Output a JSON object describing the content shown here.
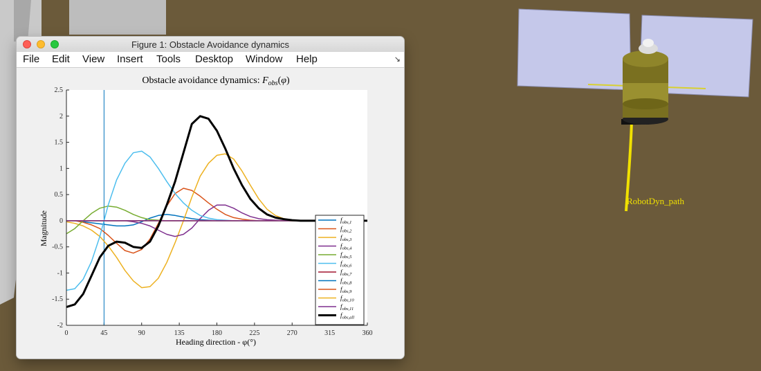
{
  "window": {
    "title": "Figure 1: Obstacle Avoidance dynamics"
  },
  "menu": [
    "File",
    "Edit",
    "View",
    "Insert",
    "Tools",
    "Desktop",
    "Window",
    "Help"
  ],
  "scene": {
    "path_label": "RobotDyn_path",
    "path_color": "#f0e000",
    "background_color": "#6b5a3a"
  },
  "chart_data": {
    "type": "line",
    "title": "Obstacle avoidance dynamics: F_obs(φ)",
    "xlabel": "Heading direction - φ(°)",
    "ylabel": "Magnitude",
    "xlim": [
      0,
      360
    ],
    "ylim": [
      -2,
      2.5
    ],
    "xticks": [
      0,
      45,
      90,
      135,
      180,
      225,
      270,
      315,
      360
    ],
    "yticks": [
      -2,
      -1.5,
      -1,
      -0.5,
      0,
      0.5,
      1,
      1.5,
      2,
      2.5
    ],
    "vline_x": 45,
    "grid": false,
    "legend_position": "bottom-right",
    "x": [
      0,
      10,
      20,
      30,
      40,
      50,
      60,
      70,
      80,
      90,
      100,
      110,
      120,
      130,
      140,
      150,
      160,
      170,
      180,
      190,
      200,
      210,
      220,
      230,
      240,
      250,
      260,
      270,
      280,
      290,
      300,
      310,
      320,
      330,
      340,
      350,
      360
    ],
    "series": [
      {
        "name": "f_obs,1",
        "color": "#0072bd",
        "width": 1.5,
        "values": [
          0,
          0,
          -0.02,
          -0.04,
          -0.06,
          -0.08,
          -0.1,
          -0.1,
          -0.08,
          -0.02,
          0.05,
          0.1,
          0.12,
          0.1,
          0.07,
          0.04,
          0.02,
          0.01,
          0,
          0,
          0,
          0,
          0,
          0,
          0,
          0,
          0,
          0,
          0,
          0,
          0,
          0,
          0,
          0,
          0,
          0,
          0
        ]
      },
      {
        "name": "f_obs,2",
        "color": "#d95319",
        "width": 1.5,
        "values": [
          0,
          0,
          -0.03,
          -0.08,
          -0.15,
          -0.28,
          -0.43,
          -0.57,
          -0.62,
          -0.55,
          -0.35,
          -0.05,
          0.28,
          0.52,
          0.62,
          0.58,
          0.47,
          0.34,
          0.22,
          0.12,
          0.06,
          0.03,
          0.01,
          0,
          0,
          0,
          0,
          0,
          0,
          0,
          0,
          0,
          0,
          0,
          0,
          0,
          0
        ]
      },
      {
        "name": "f_obs,3",
        "color": "#edb120",
        "width": 1.5,
        "values": [
          -0.02,
          -0.05,
          -0.1,
          -0.18,
          -0.3,
          -0.48,
          -0.7,
          -0.95,
          -1.15,
          -1.28,
          -1.26,
          -1.1,
          -0.8,
          -0.42,
          0,
          0.45,
          0.85,
          1.1,
          1.25,
          1.28,
          1.18,
          0.95,
          0.68,
          0.42,
          0.22,
          0.1,
          0.04,
          0.01,
          0,
          0,
          0,
          0,
          0,
          0,
          0,
          0,
          0
        ]
      },
      {
        "name": "f_obs,4",
        "color": "#7e2f8e",
        "width": 1.5,
        "values": [
          0,
          0,
          0,
          0,
          0,
          0,
          0,
          0,
          -0.02,
          -0.05,
          -0.1,
          -0.18,
          -0.26,
          -0.3,
          -0.26,
          -0.14,
          0.04,
          0.2,
          0.3,
          0.3,
          0.24,
          0.15,
          0.08,
          0.04,
          0.02,
          0.01,
          0,
          0,
          0,
          0,
          0,
          0,
          0,
          0,
          0,
          0,
          0
        ]
      },
      {
        "name": "f_obs,5",
        "color": "#77ac30",
        "width": 1.5,
        "values": [
          -0.25,
          -0.15,
          0,
          0.14,
          0.24,
          0.28,
          0.26,
          0.2,
          0.12,
          0.06,
          0.02,
          0.01,
          0,
          0,
          0,
          0,
          0,
          0,
          0,
          0,
          0,
          0,
          0,
          0,
          0,
          0,
          0,
          0,
          0,
          0,
          0,
          0,
          0,
          0,
          0,
          0,
          0
        ]
      },
      {
        "name": "f_obs,6",
        "color": "#4dbeee",
        "width": 1.5,
        "values": [
          -1.33,
          -1.3,
          -1.12,
          -0.78,
          -0.3,
          0.3,
          0.78,
          1.1,
          1.3,
          1.33,
          1.22,
          1.0,
          0.75,
          0.52,
          0.34,
          0.2,
          0.1,
          0.05,
          0.02,
          0.01,
          0,
          0,
          0,
          0,
          0,
          0,
          0,
          0,
          0,
          0,
          0,
          0,
          0,
          0,
          0,
          0,
          0
        ]
      },
      {
        "name": "f_obs,7",
        "color": "#a2142f",
        "width": 1.5,
        "values": [
          0,
          0,
          0,
          0,
          0,
          0,
          0,
          0,
          0,
          0,
          0,
          0,
          0,
          0,
          0,
          0,
          0,
          0,
          0,
          0,
          0,
          0,
          0,
          0,
          0,
          0,
          0,
          0,
          0,
          0,
          0,
          0,
          0,
          0,
          0,
          0,
          0
        ]
      },
      {
        "name": "f_obs,8",
        "color": "#0072bd",
        "width": 1.5,
        "values": [
          0,
          0,
          0,
          0,
          0,
          0,
          0,
          0,
          0,
          0,
          0,
          0,
          0,
          0,
          0,
          0,
          0,
          0,
          0,
          0,
          0,
          0,
          0,
          0,
          0,
          0,
          0,
          0,
          0,
          0,
          0,
          0,
          0,
          0,
          0,
          0,
          0
        ]
      },
      {
        "name": "f_obs,9",
        "color": "#d95319",
        "width": 1.5,
        "values": [
          0,
          0,
          0,
          0,
          0,
          0,
          0,
          0,
          0,
          0,
          0,
          0,
          0,
          0,
          0,
          0,
          0,
          0,
          0,
          0,
          0,
          0,
          0,
          0,
          0,
          0,
          0,
          0,
          0,
          0,
          0,
          0,
          0,
          0,
          0,
          0,
          0
        ]
      },
      {
        "name": "f_obs,10",
        "color": "#edb120",
        "width": 1.5,
        "values": [
          0,
          0,
          0,
          0,
          0,
          0,
          0,
          0,
          0,
          0,
          0,
          0,
          0,
          0,
          0,
          0,
          0,
          0,
          0,
          0,
          0,
          0,
          0,
          0,
          0,
          0,
          0,
          0,
          0,
          0,
          0,
          0,
          0,
          0,
          0,
          0,
          0
        ]
      },
      {
        "name": "f_obs,11",
        "color": "#7e2f8e",
        "width": 1.5,
        "values": [
          0,
          0,
          0,
          0,
          0,
          0,
          0,
          0,
          0,
          0,
          0,
          0,
          0,
          0,
          0,
          0,
          0,
          0,
          0,
          0,
          0,
          0,
          0,
          0,
          0,
          0,
          0,
          0,
          0,
          0,
          0,
          0,
          0,
          0,
          0,
          0,
          0
        ]
      },
      {
        "name": "f_obs,all",
        "color": "#000000",
        "width": 3,
        "values": [
          -1.65,
          -1.6,
          -1.4,
          -1.05,
          -0.7,
          -0.48,
          -0.4,
          -0.42,
          -0.5,
          -0.52,
          -0.4,
          -0.1,
          0.3,
          0.75,
          1.3,
          1.85,
          2.0,
          1.95,
          1.72,
          1.38,
          1.0,
          0.68,
          0.42,
          0.24,
          0.12,
          0.06,
          0.03,
          0.01,
          0,
          0,
          0,
          0,
          0,
          0,
          0,
          0,
          0
        ]
      }
    ]
  }
}
